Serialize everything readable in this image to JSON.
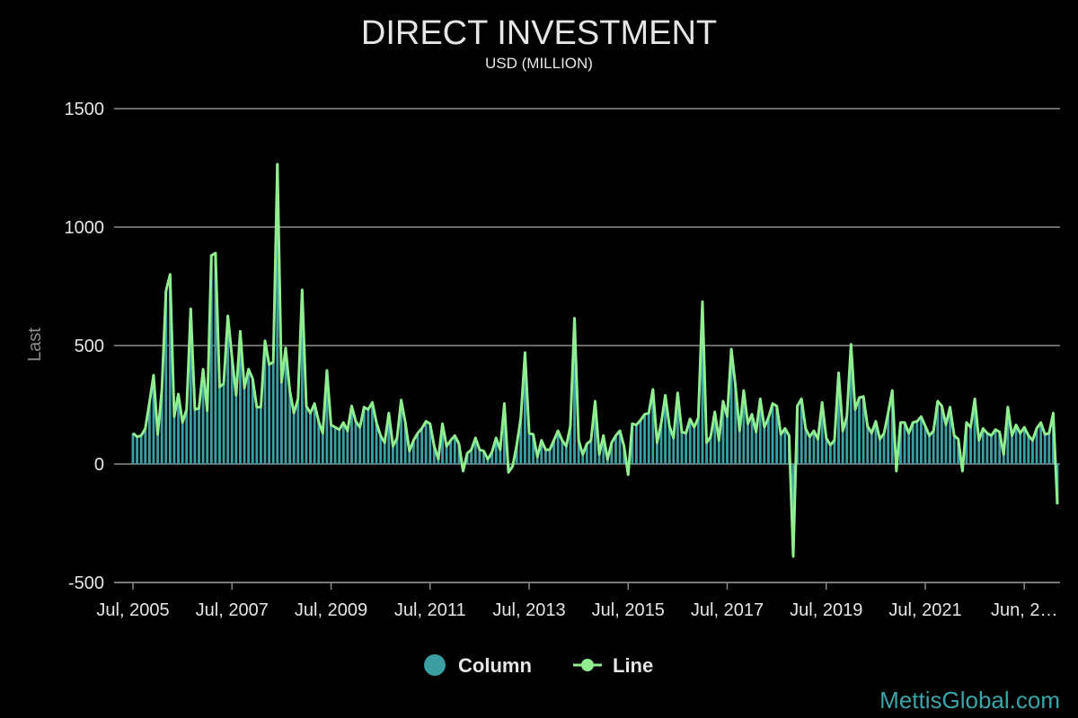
{
  "chart_data": {
    "type": "bar+line",
    "title": "DIRECT INVESTMENT",
    "subtitle": "USD (MILLION)",
    "ylabel": "Last",
    "xlabel": "",
    "ylim": [
      -500,
      1500
    ],
    "yticks": [
      1500,
      1000,
      500,
      0,
      -500
    ],
    "x_start": "Jul, 2005",
    "x_tick_labels": [
      "Jul, 2005",
      "Jul, 2007",
      "Jul, 2009",
      "Jul, 2011",
      "Jul, 2013",
      "Jul, 2015",
      "Jul, 2017",
      "Jul, 2019",
      "Jul, 2021",
      "Jun, 2…"
    ],
    "legend": [
      {
        "label": "Column",
        "color": "#3a9ea3"
      },
      {
        "label": "Line",
        "color": "#90ee90"
      }
    ],
    "grid": true,
    "column_color": "#3a9ea3",
    "line_color": "#90ee90",
    "values": [
      130,
      115,
      120,
      150,
      260,
      375,
      125,
      310,
      730,
      800,
      200,
      295,
      175,
      230,
      655,
      230,
      235,
      400,
      225,
      880,
      890,
      325,
      340,
      625,
      450,
      290,
      560,
      320,
      400,
      360,
      240,
      240,
      520,
      420,
      430,
      1265,
      345,
      490,
      310,
      215,
      275,
      735,
      245,
      215,
      255,
      180,
      130,
      395,
      165,
      155,
      145,
      175,
      140,
      245,
      180,
      155,
      240,
      230,
      260,
      175,
      120,
      90,
      215,
      75,
      110,
      270,
      175,
      55,
      100,
      130,
      150,
      180,
      170,
      75,
      20,
      170,
      75,
      100,
      120,
      85,
      -30,
      45,
      60,
      110,
      60,
      55,
      20,
      50,
      110,
      60,
      255,
      -35,
      -10,
      80,
      195,
      470,
      130,
      125,
      30,
      100,
      60,
      60,
      100,
      140,
      100,
      75,
      160,
      615,
      100,
      40,
      85,
      100,
      265,
      40,
      120,
      20,
      90,
      120,
      140,
      75,
      -45,
      170,
      165,
      185,
      210,
      215,
      315,
      90,
      170,
      290,
      160,
      110,
      300,
      135,
      130,
      190,
      155,
      195,
      685,
      90,
      115,
      220,
      100,
      265,
      200,
      485,
      330,
      140,
      310,
      170,
      210,
      135,
      275,
      155,
      195,
      255,
      245,
      125,
      150,
      120,
      -390,
      245,
      275,
      150,
      115,
      140,
      105,
      260,
      110,
      80,
      100,
      385,
      140,
      200,
      505,
      230,
      280,
      285,
      160,
      130,
      180,
      105,
      130,
      215,
      310,
      -30,
      175,
      175,
      130,
      175,
      180,
      200,
      160,
      120,
      140,
      265,
      245,
      165,
      240,
      120,
      105,
      -30,
      175,
      155,
      275,
      100,
      150,
      130,
      120,
      145,
      135,
      40,
      240,
      120,
      165,
      130,
      155,
      120,
      100,
      150,
      175,
      125,
      130,
      215,
      -170
    ]
  },
  "watermark": "MettisGlobal.com"
}
